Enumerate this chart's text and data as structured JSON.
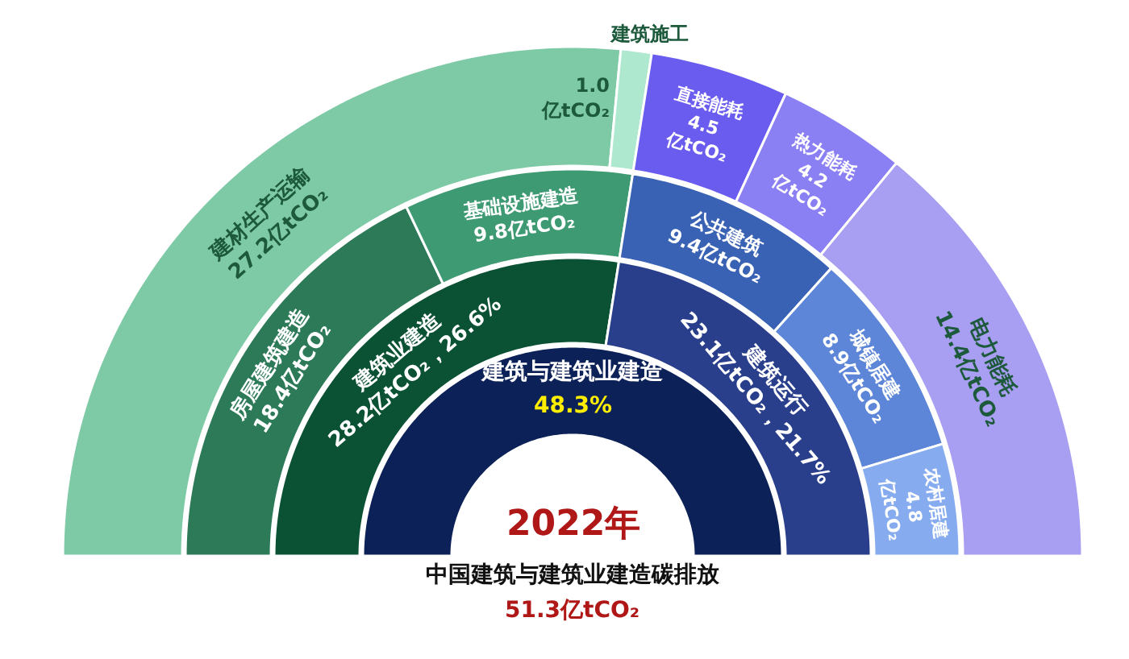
{
  "chart_data": {
    "type": "other",
    "categories": [
      "建筑与建筑业建造",
      "建筑业建造",
      "建筑运行",
      "房屋建筑建造",
      "基础设施建造",
      "公共建筑",
      "城镇居建",
      "农村居建",
      "建材生产运输",
      "建筑施工",
      "直接能耗",
      "热力能耗",
      "电力能耗"
    ],
    "series": [
      {
        "values": [
          48.3,
          null,
          null,
          null,
          null,
          null,
          null,
          null,
          null,
          null,
          null,
          null,
          null
        ],
        "colors": [
          "#0c2157",
          null,
          null,
          null,
          null,
          null,
          null,
          null,
          null,
          null,
          null,
          null,
          null
        ],
        "value_labels": [
          "48.3%",
          null,
          null,
          null,
          null,
          null,
          null,
          null,
          null,
          null,
          null,
          null,
          null
        ]
      },
      {
        "values": [
          null,
          28.2,
          23.1,
          null,
          null,
          null,
          null,
          null,
          null,
          null,
          null,
          null,
          null
        ],
        "colors": [
          null,
          "#0b5234",
          "#2a3f8c",
          null,
          null,
          null,
          null,
          null,
          null,
          null,
          null,
          null,
          null
        ],
        "value_labels": [
          null,
          "28.2亿tCO₂，26.6%",
          "23.1亿tCO₂，21.7%",
          null,
          null,
          null,
          null,
          null,
          null,
          null,
          null,
          null,
          null
        ]
      },
      {
        "values": [
          null,
          null,
          null,
          18.4,
          9.8,
          9.4,
          8.9,
          4.8,
          null,
          null,
          null,
          null,
          null
        ],
        "colors": [
          null,
          null,
          null,
          "#2d7a58",
          "#3e9a72",
          "#3a62b4",
          "#5d86d8",
          "#86acef",
          null,
          null,
          null,
          null,
          null
        ],
        "value_labels": [
          null,
          null,
          null,
          "18.4亿tCO₂",
          "9.8亿tCO₂",
          "9.4亿tCO₂",
          "8.9亿tCO₂",
          "4.8亿tCO₂",
          null,
          null,
          null,
          null,
          null
        ]
      },
      {
        "values": [
          null,
          null,
          null,
          null,
          null,
          null,
          null,
          null,
          27.2,
          1.0,
          4.5,
          4.2,
          14.4
        ],
        "colors": [
          null,
          null,
          null,
          null,
          null,
          null,
          null,
          null,
          "#7fcaa6",
          "#aee8cf",
          "#6b5cf0",
          "#8b80f3",
          "#a89ef2"
        ],
        "value_labels": [
          null,
          null,
          null,
          null,
          null,
          null,
          null,
          null,
          "27.2亿tCO₂",
          "1.0亿tCO₂",
          "4.5亿tCO₂",
          "4.2亿tCO₂",
          "14.4亿tCO₂"
        ]
      }
    ],
    "annotations": [
      "2022年",
      "中国建筑与建筑业建造碳排放",
      "51.3亿tCO₂"
    ]
  }
}
